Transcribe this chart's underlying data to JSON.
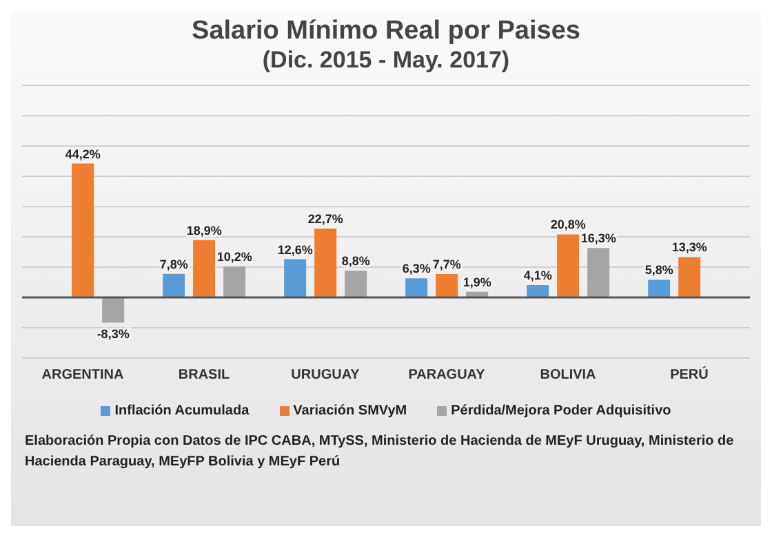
{
  "chart_data": {
    "type": "bar",
    "title": "Salario Mínimo Real por Paises",
    "subtitle": "(Dic. 2015 - May. 2017)",
    "categories": [
      "ARGENTINA",
      "BRASIL",
      "URUGUAY",
      "PARAGUAY",
      "BOLIVIA",
      "PERÚ"
    ],
    "series": [
      {
        "name": "Inflación Acumulada",
        "color": "#5b9bd5",
        "values": [
          null,
          7.8,
          12.6,
          6.3,
          4.1,
          5.8
        ],
        "value_labels": [
          null,
          "7,8%",
          "12,6%",
          "6,3%",
          "4,1%",
          "5,8%"
        ]
      },
      {
        "name": "Variación SMVyM",
        "color": "#ed7d31",
        "values": [
          44.2,
          18.9,
          22.7,
          7.7,
          20.8,
          13.3
        ],
        "value_labels": [
          "44,2%",
          "18,9%",
          "22,7%",
          "7,7%",
          "20,8%",
          "13,3%"
        ]
      },
      {
        "name": "Pérdida/Mejora Poder Adquisitivo",
        "color": "#a5a5a5",
        "values": [
          -8.3,
          10.2,
          8.8,
          1.9,
          16.3,
          null
        ],
        "value_labels": [
          "-8,3%",
          "10,2%",
          "8,8%",
          "1,9%",
          "16,3%",
          null
        ]
      }
    ],
    "ylim": [
      -20,
      70
    ],
    "yticks": [
      {
        "value": -20,
        "label": null
      },
      {
        "value": -10,
        "label": null
      },
      {
        "value": 0,
        "label": null
      },
      {
        "value": 10,
        "label": null
      },
      {
        "value": 20,
        "label": null
      },
      {
        "value": 30,
        "label": null
      },
      {
        "value": 40,
        "label": null
      },
      {
        "value": 50,
        "label": null
      },
      {
        "value": 60,
        "label": null
      },
      {
        "value": 70,
        "label": null
      }
    ],
    "tick_labels": "x",
    "grid": "y",
    "legend": "bottom",
    "annotations": [
      "Elaboración Propia con Datos de IPC CABA, MTySS, Ministerio de Hacienda de MEyF Uruguay, Ministerio de Hacienda Paraguay, MEyFP Bolivia y MEyF Perú"
    ]
  }
}
